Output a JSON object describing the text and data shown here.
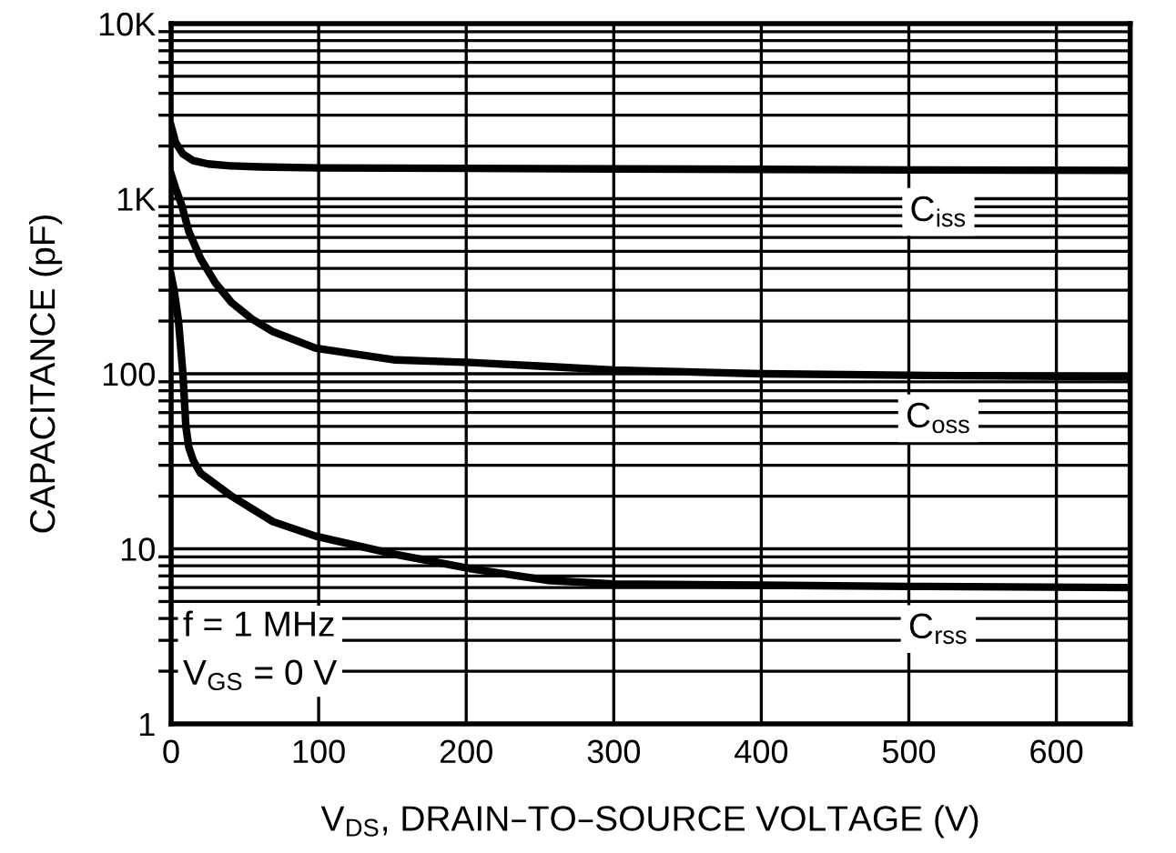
{
  "chart_data": {
    "type": "line",
    "xlabel": "V$_{DS}$, DRAIN–TO–SOURCE VOLTAGE (V)",
    "ylabel": "CAPACITANCE (pF)",
    "annotations": [
      "f = 1 MHz\nV$_{GS}$ = 0 V"
    ],
    "series": [
      {
        "name": "C$_{iss}$",
        "color": "#000000",
        "x": [
          0,
          3,
          8,
          15,
          25,
          40,
          60,
          100,
          200,
          300,
          400,
          500,
          650
        ],
        "values": [
          2600,
          2100,
          1800,
          1650,
          1580,
          1540,
          1520,
          1500,
          1490,
          1480,
          1470,
          1460,
          1450
        ]
      },
      {
        "name": "C$_{oss}$",
        "color": "#000000",
        "x": [
          0,
          3,
          7,
          12,
          20,
          30,
          41,
          55,
          69,
          98,
          152,
          203,
          255,
          300,
          400,
          500,
          650
        ],
        "values": [
          1380,
          1150,
          930,
          650,
          455,
          330,
          255,
          205,
          174,
          140,
          120,
          116,
          110,
          105,
          100,
          98,
          96
        ]
      },
      {
        "name": "C$_{rss}$",
        "color": "#000000",
        "x": [
          0,
          2,
          5,
          8,
          10,
          12,
          15,
          20,
          41,
          69,
          98,
          152,
          203,
          255,
          300,
          400,
          500,
          650
        ],
        "values": [
          365,
          300,
          200,
          100,
          50,
          38,
          32,
          27,
          20,
          14.3,
          11.8,
          9.3,
          7.7,
          6.6,
          6.3,
          6.2,
          6.1,
          6.0
        ]
      }
    ],
    "log": "y",
    "xlim": [
      0,
      650
    ],
    "ylim": [
      1,
      10000
    ],
    "xticks": [
      0,
      100,
      200,
      300,
      400,
      500,
      600
    ],
    "yticks": [
      1,
      10,
      100,
      {
        "value": 1000,
        "label": "1K"
      },
      {
        "value": 10000,
        "label": "10K"
      }
    ],
    "grid": true,
    "legend": false,
    "line_style": "solid",
    "marker": "none"
  }
}
